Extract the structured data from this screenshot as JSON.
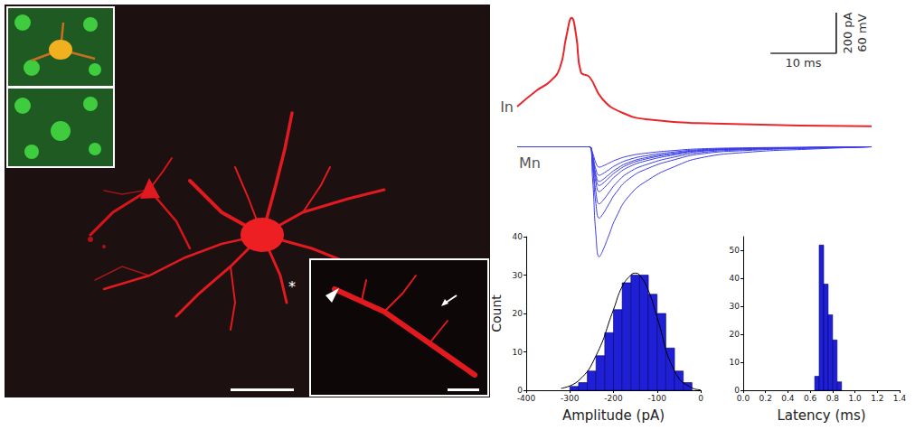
{
  "image": {
    "annotations": [
      "*"
    ]
  },
  "chart_data": [
    {
      "type": "line",
      "tick_labels": false,
      "xlim": [
        0,
        54
      ],
      "ylim": [
        -80,
        100
      ],
      "y2lim": [
        -570,
        20
      ],
      "scale_bar": {
        "x": {
          "value": 10,
          "label": "10 ms"
        },
        "y": {
          "value": 60,
          "label": "60 mV"
        },
        "y2": {
          "value": 200,
          "label": "200 pA"
        }
      },
      "series": [
        {
          "name": "In",
          "color": "#e8262a",
          "x": [
            0,
            3,
            5,
            6.5,
            7.5,
            8.3,
            9,
            9.7,
            11,
            13,
            16,
            20,
            30,
            54
          ],
          "values": [
            -44,
            -20,
            -7,
            13,
            60,
            87,
            60,
            7,
            0,
            -33,
            -53,
            -63,
            -69,
            -73
          ]
        },
        {
          "name": "Mn",
          "color": "#3c3ce6",
          "axis": "y2",
          "x": [
            0,
            5,
            10,
            11,
            11.5,
            12,
            12.5,
            13,
            14,
            15,
            17,
            20,
            24,
            28,
            35,
            45,
            54
          ],
          "values": [
            [
              0,
              0,
              0,
              0,
              -30,
              -80,
              -100,
              -95,
              -80,
              -65,
              -45,
              -30,
              -18,
              -10,
              -5,
              -2,
              0
            ],
            [
              0,
              0,
              0,
              0,
              -42,
              -112,
              -140,
              -133,
              -112,
              -91,
              -63,
              -42,
              -25,
              -14,
              -7,
              -3,
              0
            ],
            [
              0,
              0,
              0,
              0,
              -51,
              -136,
              -170,
              -162,
              -136,
              -111,
              -77,
              -51,
              -31,
              -17,
              -9,
              -3,
              0
            ],
            [
              0,
              0,
              0,
              0,
              -57,
              -152,
              -190,
              -181,
              -152,
              -124,
              -86,
              -57,
              -34,
              -19,
              -10,
              -4,
              0
            ],
            [
              0,
              0,
              0,
              0,
              -66,
              -176,
              -220,
              -209,
              -176,
              -143,
              -99,
              -66,
              -40,
              -22,
              -11,
              -4,
              0
            ],
            [
              0,
              0,
              0,
              0,
              -84,
              -224,
              -280,
              -266,
              -224,
              -182,
              -126,
              -84,
              -50,
              -28,
              -14,
              -6,
              0
            ],
            [
              0,
              0,
              0,
              0,
              -105,
              -280,
              -350,
              -333,
              -280,
              -228,
              -158,
              -105,
              -63,
              -35,
              -18,
              -7,
              0
            ],
            [
              0,
              0,
              0,
              0,
              -162,
              -432,
              -540,
              -513,
              -432,
              -351,
              -243,
              -162,
              -97,
              -54,
              -27,
              -11,
              0
            ]
          ]
        }
      ]
    },
    {
      "type": "histogram",
      "xlabel": "Amplitude (pA)",
      "ylabel": "Count",
      "grid": false,
      "color": "#1f1fd6",
      "bins": [
        -300,
        -280,
        -260,
        -240,
        -220,
        -200,
        -180,
        -160,
        -140,
        -120,
        -100,
        -80,
        -60,
        -40,
        -20
      ],
      "counts": [
        1,
        2,
        5,
        9,
        15,
        21,
        28,
        30,
        30,
        25,
        20,
        11,
        5,
        2
      ],
      "fit": {
        "color": "#000000",
        "x": [
          -320,
          -280,
          -240,
          -200,
          -180,
          -160,
          -150,
          -140,
          -120,
          -100,
          -60,
          -20,
          0
        ],
        "values": [
          0.5,
          2.5,
          9,
          21,
          27,
          30,
          30.5,
          30,
          26,
          19,
          5,
          0.6,
          0.1
        ]
      },
      "xlim": [
        -400,
        0
      ],
      "xticks": [
        -400,
        -300,
        -200,
        -100,
        0
      ],
      "ylim": [
        0,
        40
      ],
      "yticks": [
        0,
        10,
        20,
        30,
        40
      ]
    },
    {
      "type": "histogram",
      "xlabel": "Latency (ms)",
      "grid": false,
      "color": "#1f1fd6",
      "bins": [
        0.64,
        0.68,
        0.72,
        0.76,
        0.8,
        0.84,
        0.88
      ],
      "counts": [
        5,
        52,
        38,
        27,
        18,
        3
      ],
      "xlim": [
        0,
        1.4
      ],
      "xticks": [
        {
          "value": 0,
          "label": "0.0"
        },
        0.2,
        0.4,
        0.6,
        0.8,
        {
          "value": 1,
          "label": "1.0"
        },
        1.2,
        1.4
      ],
      "ylim": [
        0,
        55
      ],
      "yticks": [
        0,
        10,
        20,
        30,
        40,
        50
      ]
    }
  ]
}
